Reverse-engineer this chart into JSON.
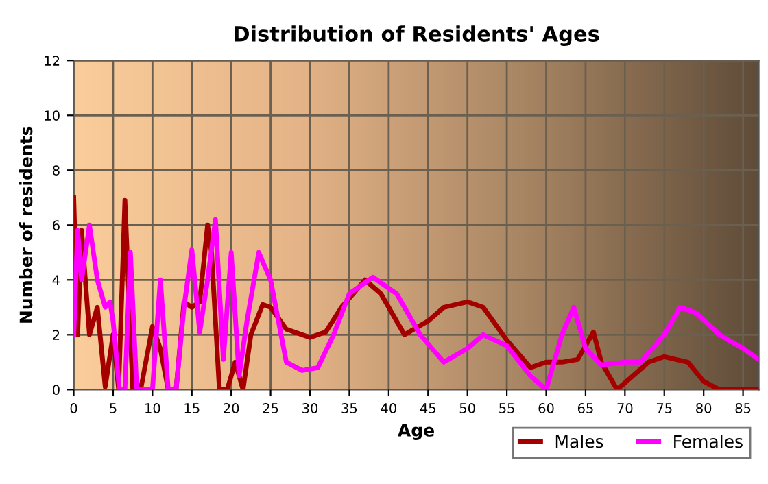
{
  "chart_data": {
    "type": "line",
    "title": "Distribution of Residents' Ages",
    "xlabel": "Age",
    "ylabel": "Number of residents",
    "xlim": [
      0,
      87
    ],
    "ylim": [
      0,
      12
    ],
    "xticks": [
      0,
      5,
      10,
      15,
      20,
      25,
      30,
      35,
      40,
      45,
      50,
      55,
      60,
      65,
      70,
      75,
      80,
      85
    ],
    "yticks": [
      0,
      2,
      4,
      6,
      8,
      10,
      12
    ],
    "grid": true,
    "legend": "bottom right",
    "line_style": "solid",
    "series": [
      {
        "name": "Males",
        "color": "#a50000",
        "x": [
          0,
          0.5,
          1,
          2,
          3,
          4,
          5,
          5.7,
          6.5,
          7.5,
          8.5,
          10,
          11,
          12,
          13,
          14,
          15,
          16,
          17,
          17.5,
          18.5,
          19.5,
          20.5,
          21.5,
          22.5,
          24,
          25,
          27,
          30,
          32,
          34,
          37,
          39,
          42,
          45,
          47,
          50,
          52,
          55,
          58,
          60,
          62,
          64,
          66,
          67,
          69,
          71,
          73,
          75,
          78,
          80,
          82,
          87
        ],
        "values": [
          7,
          2,
          5.8,
          2,
          3,
          0.1,
          2,
          0,
          6.9,
          0,
          0,
          2.3,
          1.5,
          0,
          0,
          3.2,
          3,
          3.2,
          6,
          5,
          0,
          0,
          1,
          0,
          2,
          3.1,
          3,
          2.2,
          1.9,
          2.1,
          3,
          4,
          3.5,
          2,
          2.5,
          3,
          3.2,
          3,
          1.8,
          0.8,
          1,
          1,
          1.1,
          2.1,
          1,
          0,
          0.5,
          1,
          1.2,
          1,
          0.3,
          0,
          0
        ]
      },
      {
        "name": "Females",
        "color": "#ff00ff",
        "x": [
          0,
          0.5,
          1,
          2,
          3,
          4,
          4.6,
          5,
          5.8,
          6.5,
          7.2,
          8,
          10,
          11,
          12,
          13,
          14,
          15,
          16,
          17,
          18,
          19,
          20,
          21,
          22,
          23.5,
          25,
          27,
          29,
          31,
          33,
          35,
          38,
          41,
          44,
          47,
          50,
          52,
          55,
          58,
          60,
          62,
          63.5,
          65,
          67,
          70,
          72,
          75,
          77,
          79,
          82,
          85,
          87
        ],
        "values": [
          2,
          5.8,
          4,
          6,
          4,
          3,
          3.2,
          2.5,
          0,
          0,
          5,
          0,
          0,
          4,
          0,
          0,
          3,
          5.1,
          2.1,
          4,
          6.2,
          1.1,
          5,
          0.5,
          2.5,
          5,
          4,
          1,
          0.7,
          0.8,
          2,
          3.5,
          4.1,
          3.5,
          2,
          1,
          1.5,
          2,
          1.6,
          0.5,
          0,
          2,
          3,
          1.5,
          0.9,
          1,
          1,
          2,
          3,
          2.8,
          2,
          1.5,
          1.1
        ]
      }
    ]
  }
}
